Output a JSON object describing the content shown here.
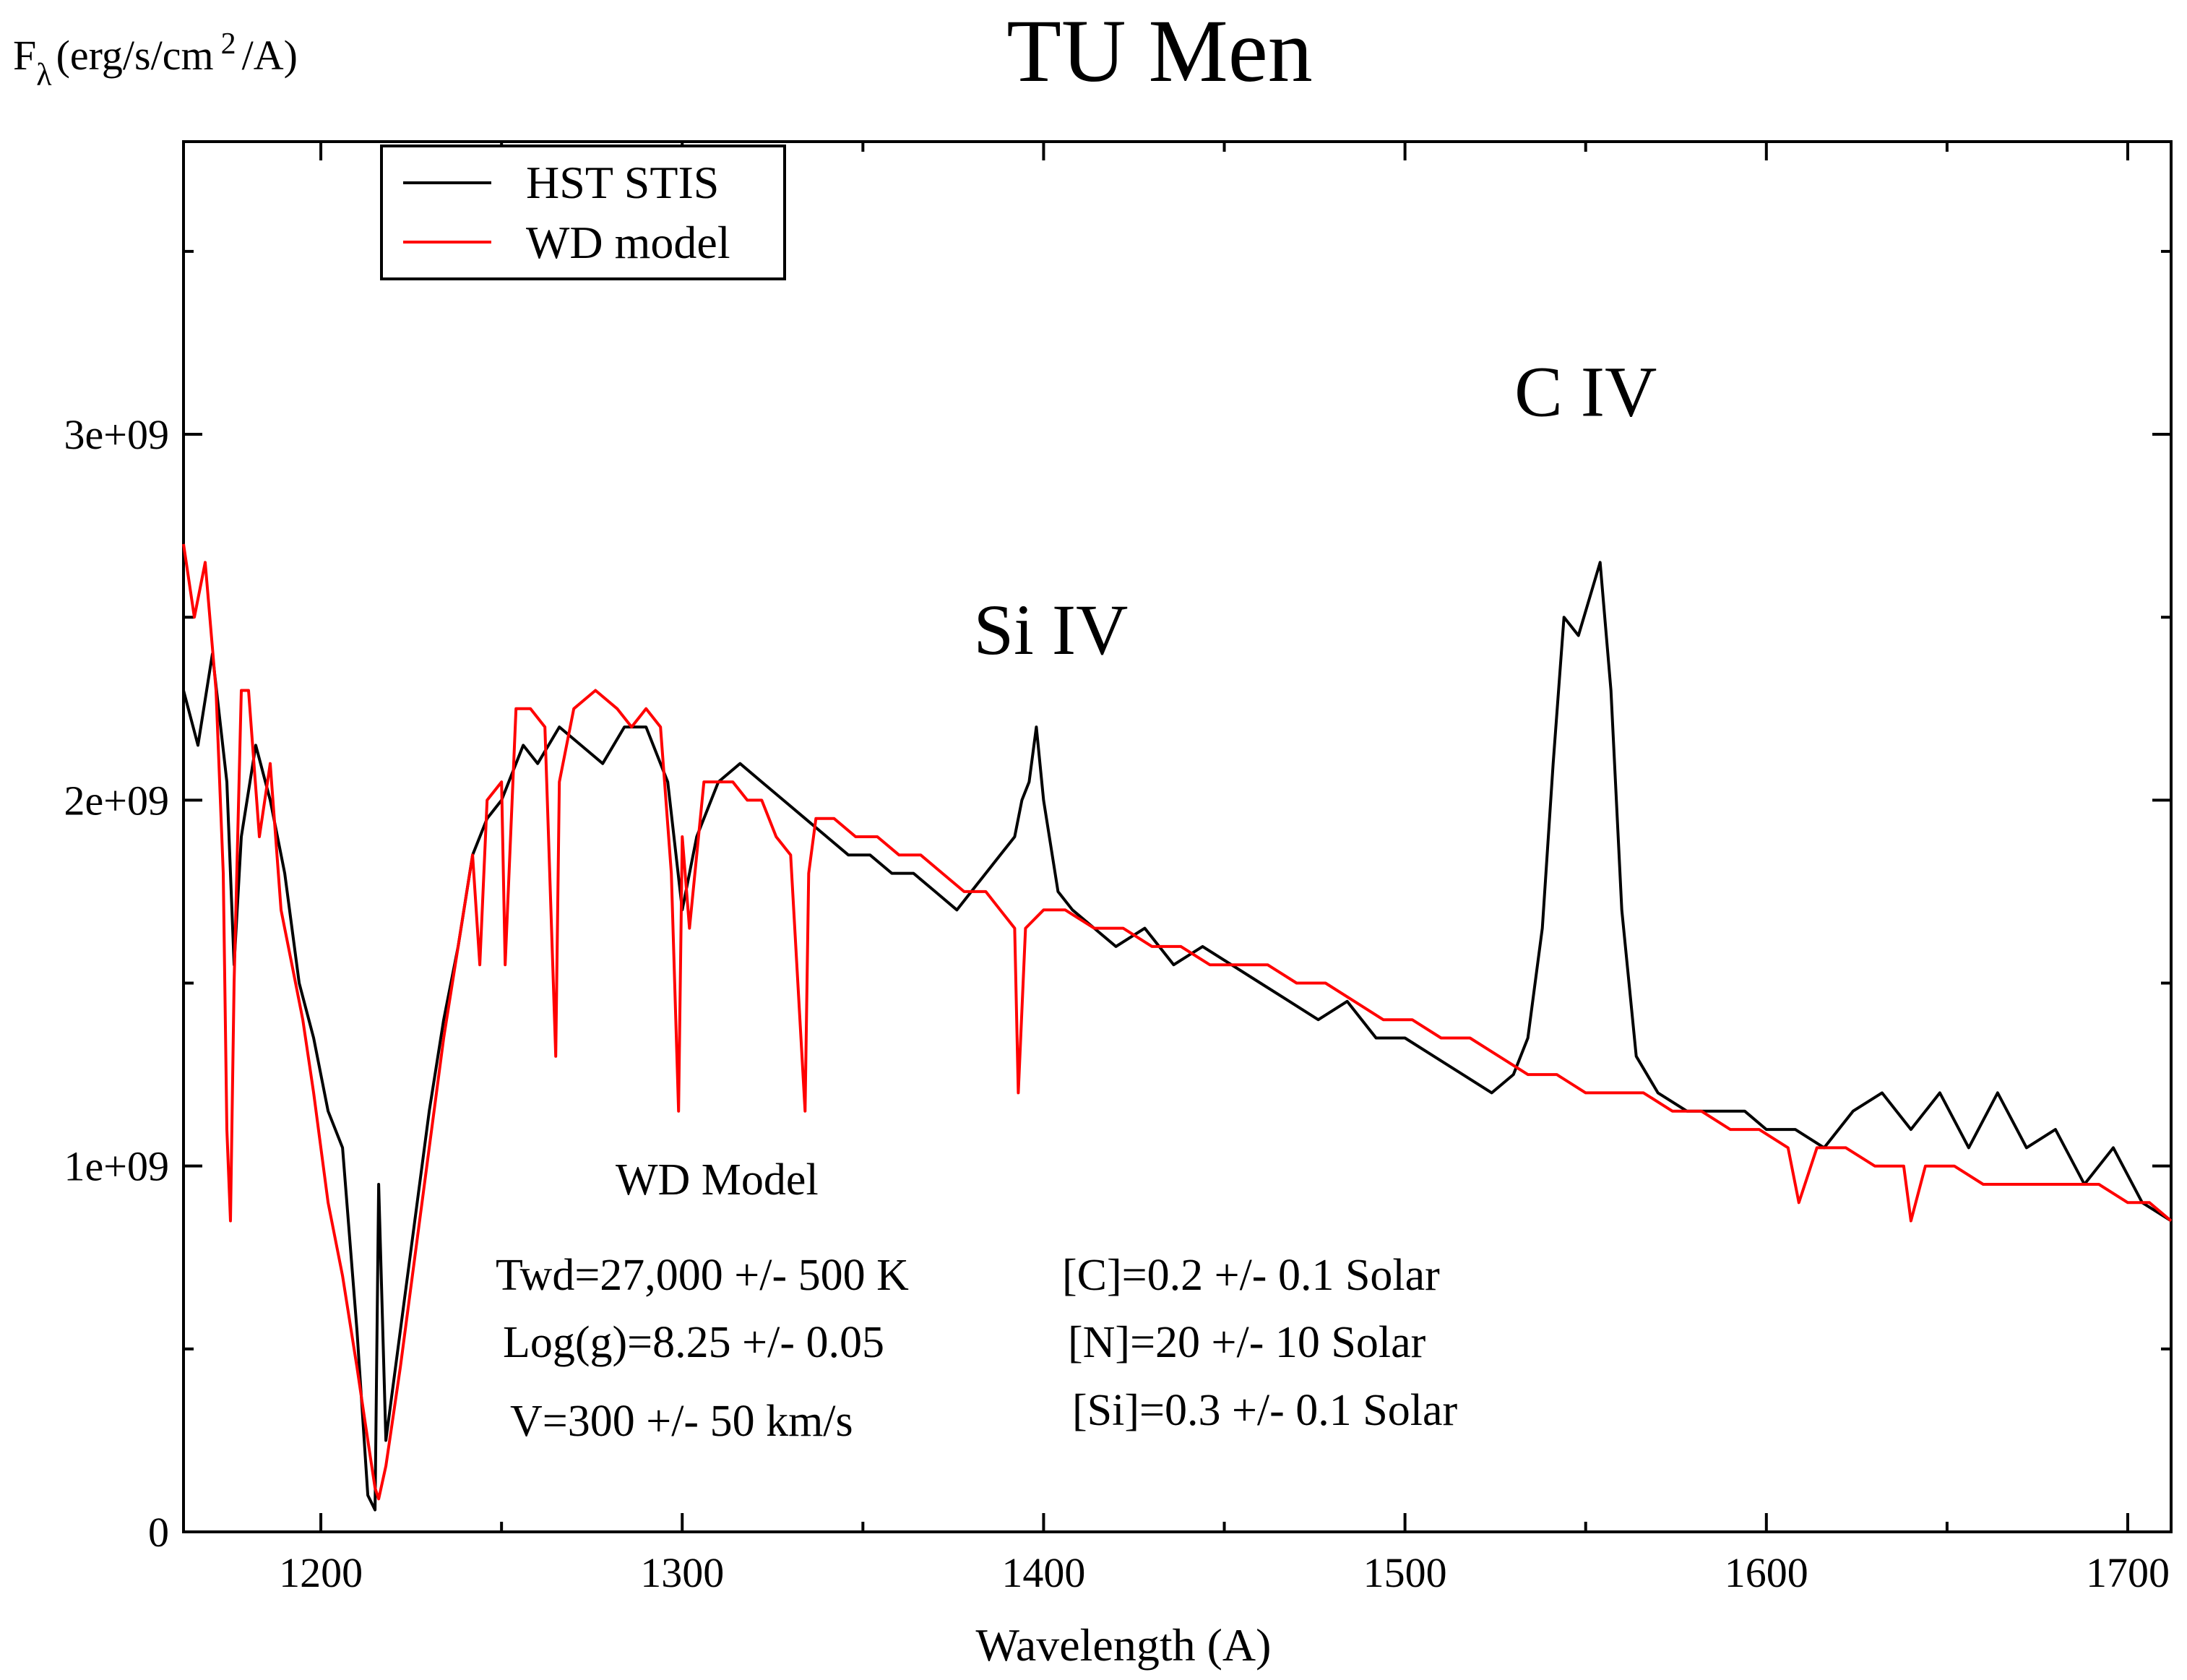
{
  "chart_data": {
    "type": "line",
    "title": "TU Men",
    "ylabel": {
      "main": "F",
      "subscript": "λ",
      "units_prefix": "(erg/s/cm",
      "units_sup": "2",
      "units_suffix": "/A)"
    },
    "xlabel": "Wavelength (A)",
    "xlim": [
      1162,
      1712
    ],
    "ylim": [
      0,
      3800000000
    ],
    "x_ticks": [
      1200,
      1300,
      1400,
      1500,
      1600,
      1700
    ],
    "x_tick_labels": [
      "1200",
      "1300",
      "1400",
      "1500",
      "1600",
      "1700"
    ],
    "y_ticks": [
      0,
      1000000000,
      2000000000,
      3000000000
    ],
    "y_tick_labels": [
      "0",
      "1e+09",
      "2e+09",
      "3e+09"
    ],
    "grid": false,
    "legend_position": "top-left",
    "series": [
      {
        "name": "HST STIS",
        "color": "#000000",
        "x": [
          1162,
          1166,
          1170,
          1174,
          1176,
          1178,
          1182,
          1186,
          1190,
          1194,
          1198,
          1202,
          1206,
          1210,
          1213,
          1215,
          1216,
          1218,
          1222,
          1226,
          1230,
          1234,
          1238,
          1242,
          1246,
          1250,
          1256,
          1260,
          1266,
          1272,
          1278,
          1284,
          1290,
          1296,
          1300,
          1304,
          1310,
          1316,
          1322,
          1328,
          1334,
          1340,
          1346,
          1352,
          1358,
          1364,
          1370,
          1376,
          1380,
          1384,
          1388,
          1392,
          1394,
          1396,
          1398,
          1400,
          1404,
          1408,
          1414,
          1420,
          1428,
          1436,
          1444,
          1452,
          1460,
          1468,
          1476,
          1484,
          1492,
          1500,
          1508,
          1516,
          1524,
          1530,
          1534,
          1538,
          1541,
          1544,
          1548,
          1551,
          1554,
          1557,
          1560,
          1564,
          1570,
          1578,
          1586,
          1594,
          1600,
          1608,
          1616,
          1624,
          1632,
          1640,
          1648,
          1656,
          1664,
          1672,
          1680,
          1688,
          1696,
          1704,
          1712
        ],
        "y": [
          2300000000,
          2150000000,
          2400000000,
          2050000000,
          1550000000,
          1900000000,
          2150000000,
          2000000000,
          1800000000,
          1500000000,
          1350000000,
          1150000000,
          1050000000,
          550000000,
          100000000,
          60000000,
          950000000,
          250000000,
          550000000,
          850000000,
          1150000000,
          1400000000,
          1600000000,
          1850000000,
          1950000000,
          2000000000,
          2150000000,
          2100000000,
          2200000000,
          2150000000,
          2100000000,
          2200000000,
          2200000000,
          2050000000,
          1700000000,
          1900000000,
          2050000000,
          2100000000,
          2050000000,
          2000000000,
          1950000000,
          1900000000,
          1850000000,
          1850000000,
          1800000000,
          1800000000,
          1750000000,
          1700000000,
          1750000000,
          1800000000,
          1850000000,
          1900000000,
          2000000000,
          2050000000,
          2200000000,
          2000000000,
          1750000000,
          1700000000,
          1650000000,
          1600000000,
          1650000000,
          1550000000,
          1600000000,
          1550000000,
          1500000000,
          1450000000,
          1400000000,
          1450000000,
          1350000000,
          1350000000,
          1300000000,
          1250000000,
          1200000000,
          1250000000,
          1350000000,
          1650000000,
          2100000000,
          2500000000,
          2450000000,
          2550000000,
          2650000000,
          2300000000,
          1700000000,
          1300000000,
          1200000000,
          1150000000,
          1150000000,
          1150000000,
          1100000000,
          1100000000,
          1050000000,
          1150000000,
          1200000000,
          1100000000,
          1200000000,
          1050000000,
          1200000000,
          1050000000,
          1100000000,
          950000000,
          1050000000,
          900000000,
          850000000
        ]
      },
      {
        "name": "WD model",
        "color": "#ff0000",
        "x": [
          1162,
          1165,
          1168,
          1171,
          1173,
          1174,
          1175,
          1176,
          1178,
          1180,
          1183,
          1186,
          1189,
          1192,
          1195,
          1198,
          1202,
          1206,
          1210,
          1213,
          1215,
          1216,
          1218,
          1222,
          1226,
          1230,
          1234,
          1238,
          1242,
          1244,
          1246,
          1250,
          1251,
          1254,
          1258,
          1262,
          1265,
          1266,
          1270,
          1276,
          1282,
          1286,
          1290,
          1294,
          1297,
          1299,
          1300,
          1302,
          1306,
          1310,
          1314,
          1318,
          1322,
          1326,
          1330,
          1334,
          1335,
          1337,
          1342,
          1348,
          1354,
          1360,
          1366,
          1372,
          1378,
          1384,
          1388,
          1392,
          1393,
          1395,
          1400,
          1406,
          1414,
          1422,
          1430,
          1438,
          1446,
          1454,
          1462,
          1470,
          1478,
          1486,
          1494,
          1502,
          1510,
          1518,
          1526,
          1534,
          1542,
          1550,
          1558,
          1566,
          1574,
          1582,
          1590,
          1598,
          1606,
          1609,
          1614,
          1622,
          1630,
          1638,
          1640,
          1644,
          1652,
          1660,
          1668,
          1676,
          1684,
          1692,
          1700,
          1706,
          1712
        ],
        "y": [
          2700000000,
          2500000000,
          2650000000,
          2300000000,
          1800000000,
          1100000000,
          850000000,
          1500000000,
          2300000000,
          2300000000,
          1900000000,
          2100000000,
          1700000000,
          1550000000,
          1400000000,
          1200000000,
          900000000,
          700000000,
          450000000,
          250000000,
          120000000,
          90000000,
          180000000,
          450000000,
          750000000,
          1050000000,
          1350000000,
          1600000000,
          1850000000,
          1550000000,
          2000000000,
          2050000000,
          1550000000,
          2250000000,
          2250000000,
          2200000000,
          1300000000,
          2050000000,
          2250000000,
          2300000000,
          2250000000,
          2200000000,
          2250000000,
          2200000000,
          1800000000,
          1150000000,
          1900000000,
          1650000000,
          2050000000,
          2050000000,
          2050000000,
          2000000000,
          2000000000,
          1900000000,
          1850000000,
          1150000000,
          1800000000,
          1950000000,
          1950000000,
          1900000000,
          1900000000,
          1850000000,
          1850000000,
          1800000000,
          1750000000,
          1750000000,
          1700000000,
          1650000000,
          1200000000,
          1650000000,
          1700000000,
          1700000000,
          1650000000,
          1650000000,
          1600000000,
          1600000000,
          1550000000,
          1550000000,
          1550000000,
          1500000000,
          1500000000,
          1450000000,
          1400000000,
          1400000000,
          1350000000,
          1350000000,
          1300000000,
          1250000000,
          1250000000,
          1200000000,
          1200000000,
          1200000000,
          1150000000,
          1150000000,
          1100000000,
          1100000000,
          1050000000,
          900000000,
          1050000000,
          1050000000,
          1000000000,
          1000000000,
          850000000,
          1000000000,
          1000000000,
          950000000,
          950000000,
          950000000,
          950000000,
          950000000,
          900000000,
          900000000,
          850000000
        ]
      }
    ],
    "annotations": [
      {
        "text": "C IV",
        "x": 1550,
        "y": 3050000000,
        "size": "big"
      },
      {
        "text": "Si IV",
        "x": 1402,
        "y": 2400000000,
        "size": "big"
      }
    ],
    "model_info": {
      "heading": "WD Model",
      "left_lines": [
        "Twd=27,000 +/- 500 K",
        "Log(g)=8.25 +/- 0.05",
        "V=300 +/- 50 km/s"
      ],
      "right_lines": [
        "[C]=0.2 +/- 0.1 Solar",
        "[N]=20 +/- 10 Solar",
        "[Si]=0.3 +/- 0.1 Solar"
      ]
    }
  }
}
